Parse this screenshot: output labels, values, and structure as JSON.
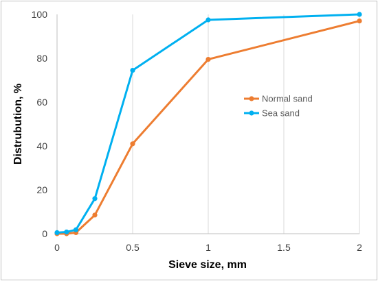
{
  "chart_data": {
    "type": "line",
    "title": "",
    "xlabel": "Sieve size, mm",
    "ylabel": "Distrubution, %",
    "xlim": [
      0,
      2
    ],
    "ylim": [
      0,
      100
    ],
    "xticks": [
      "0",
      "0.5",
      "1",
      "1.5",
      "2"
    ],
    "yticks": [
      "0",
      "20",
      "40",
      "60",
      "80",
      "100"
    ],
    "grid": "vertical",
    "legend": "right",
    "series": [
      {
        "name": "Normal sand",
        "color": "#ED7D31",
        "x": [
          0,
          0.063,
          0.125,
          0.25,
          0.5,
          1,
          2
        ],
        "y": [
          0,
          0,
          0.5,
          8.5,
          41,
          79.5,
          97
        ]
      },
      {
        "name": "Sea sand",
        "color": "#00B0F0",
        "x": [
          0,
          0.063,
          0.125,
          0.25,
          0.5,
          1,
          2
        ],
        "y": [
          0.5,
          0.8,
          1.8,
          16,
          74.5,
          97.5,
          100
        ]
      }
    ]
  }
}
